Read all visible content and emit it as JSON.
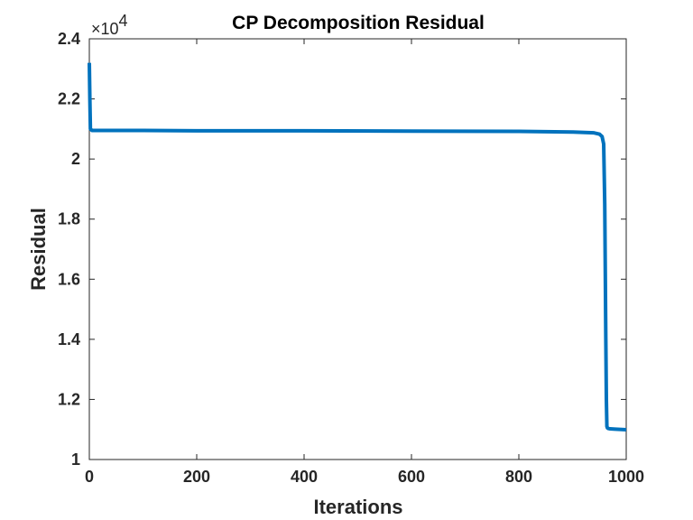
{
  "chart_data": {
    "type": "line",
    "title": "CP Decomposition Residual",
    "xlabel": "Iterations",
    "ylabel": "Residual",
    "xlim": [
      0,
      1000
    ],
    "ylim": [
      1.0,
      2.4
    ],
    "y_multiplier": {
      "base": "×10",
      "exponent": "4"
    },
    "x_ticks": [
      0,
      200,
      400,
      600,
      800,
      1000
    ],
    "y_ticks": [
      1,
      1.2,
      1.4,
      1.6,
      1.8,
      2,
      2.2,
      2.4
    ],
    "x_tick_labels": [
      "0",
      "200",
      "400",
      "600",
      "800",
      "1000"
    ],
    "y_tick_labels": [
      "1",
      "1.2",
      "1.4",
      "1.6",
      "1.8",
      "2",
      "2.2",
      "2.4"
    ],
    "grid": false,
    "series": [
      {
        "color": "#0072BD",
        "x": [
          0,
          1,
          2,
          5,
          20,
          100,
          200,
          400,
          600,
          800,
          900,
          940,
          950,
          955,
          958,
          960,
          962,
          963,
          964,
          965,
          967,
          970,
          980,
          1000
        ],
        "y": [
          2.32,
          2.2,
          2.1,
          2.095,
          2.095,
          2.095,
          2.094,
          2.094,
          2.093,
          2.092,
          2.09,
          2.087,
          2.083,
          2.075,
          2.05,
          1.85,
          1.4,
          1.2,
          1.11,
          1.105,
          1.103,
          1.102,
          1.101,
          1.099
        ]
      }
    ]
  }
}
